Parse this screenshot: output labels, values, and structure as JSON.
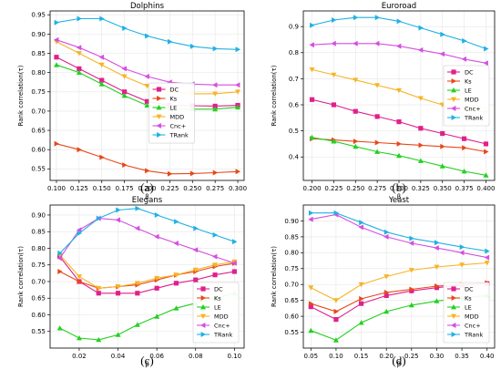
{
  "figure": {
    "panels": [
      {
        "id": "a",
        "caption": "(a)"
      },
      {
        "id": "b",
        "caption": "(b)"
      },
      {
        "id": "c",
        "caption": "(c)"
      },
      {
        "id": "d",
        "caption": "(d)"
      }
    ]
  },
  "chart_data": [
    {
      "type": "line",
      "title": "Dolphins",
      "caption": "(a)",
      "xlabel": "β",
      "ylabel": "Rank correlation(τ)",
      "x": [
        0.1,
        0.125,
        0.15,
        0.175,
        0.2,
        0.225,
        0.25,
        0.275,
        0.3
      ],
      "xticks": [
        0.1,
        0.125,
        0.15,
        0.175,
        0.2,
        0.225,
        0.25,
        0.275,
        0.3
      ],
      "xtick_labels": [
        "0.100",
        "0.125",
        "0.150",
        "0.175",
        "0.200",
        "0.225",
        "0.250",
        "0.275",
        "0.300"
      ],
      "xlim": [
        0.093,
        0.307
      ],
      "ylim": [
        0.52,
        0.96
      ],
      "yticks": [
        0.55,
        0.6,
        0.65,
        0.7,
        0.75,
        0.8,
        0.85,
        0.9,
        0.95
      ],
      "ytick_labels": [
        "0.55",
        "0.60",
        "0.65",
        "0.70",
        "0.75",
        "0.80",
        "0.85",
        "0.90",
        "0.95"
      ],
      "legend": "center",
      "series": [
        {
          "name": "DC",
          "color": "#e0208c",
          "marker": "square",
          "values": [
            0.84,
            0.81,
            0.78,
            0.75,
            0.725,
            0.715,
            0.714,
            0.713,
            0.715
          ]
        },
        {
          "name": "Ks",
          "color": "#e8471a",
          "marker": "tri_right",
          "values": [
            0.615,
            0.6,
            0.58,
            0.56,
            0.545,
            0.537,
            0.538,
            0.54,
            0.543
          ]
        },
        {
          "name": "LE",
          "color": "#22d11f",
          "marker": "tri_up",
          "values": [
            0.82,
            0.8,
            0.77,
            0.74,
            0.715,
            0.705,
            0.705,
            0.705,
            0.71
          ]
        },
        {
          "name": "MDD",
          "color": "#f7b425",
          "marker": "tri_down",
          "values": [
            0.88,
            0.85,
            0.82,
            0.79,
            0.765,
            0.75,
            0.745,
            0.745,
            0.75
          ]
        },
        {
          "name": "Cnc+",
          "color": "#d54fe0",
          "marker": "tri_left",
          "values": [
            0.885,
            0.865,
            0.84,
            0.81,
            0.79,
            0.775,
            0.77,
            0.768,
            0.768
          ]
        },
        {
          "name": "TRank",
          "color": "#20b1e3",
          "marker": "tri_right",
          "values": [
            0.93,
            0.94,
            0.94,
            0.915,
            0.895,
            0.88,
            0.868,
            0.862,
            0.86
          ]
        }
      ]
    },
    {
      "type": "line",
      "title": "Euroroad",
      "caption": "(b)",
      "xlabel": "β",
      "ylabel": "Rank correlation(τ)",
      "x": [
        0.2,
        0.225,
        0.25,
        0.275,
        0.3,
        0.325,
        0.35,
        0.375,
        0.4
      ],
      "xticks": [
        0.2,
        0.225,
        0.25,
        0.275,
        0.3,
        0.325,
        0.35,
        0.375,
        0.4
      ],
      "xtick_labels": [
        "0.200",
        "0.225",
        "0.250",
        "0.275",
        "0.300",
        "0.325",
        "0.350",
        "0.375",
        "0.400"
      ],
      "xlim": [
        0.19,
        0.41
      ],
      "ylim": [
        0.31,
        0.96
      ],
      "yticks": [
        0.4,
        0.5,
        0.6,
        0.7,
        0.8,
        0.9
      ],
      "ytick_labels": [
        "0.4",
        "0.5",
        "0.6",
        "0.7",
        "0.8",
        "0.9"
      ],
      "legend": "right",
      "series": [
        {
          "name": "DC",
          "color": "#e0208c",
          "marker": "square",
          "values": [
            0.62,
            0.6,
            0.575,
            0.555,
            0.535,
            0.51,
            0.49,
            0.47,
            0.45
          ]
        },
        {
          "name": "Ks",
          "color": "#e8471a",
          "marker": "tri_right",
          "values": [
            0.47,
            0.465,
            0.46,
            0.455,
            0.45,
            0.445,
            0.44,
            0.435,
            0.42
          ]
        },
        {
          "name": "LE",
          "color": "#22d11f",
          "marker": "tri_up",
          "values": [
            0.475,
            0.46,
            0.44,
            0.42,
            0.405,
            0.385,
            0.365,
            0.345,
            0.33
          ]
        },
        {
          "name": "MDD",
          "color": "#f7b425",
          "marker": "tri_down",
          "values": [
            0.735,
            0.715,
            0.695,
            0.675,
            0.655,
            0.625,
            0.6,
            0.585,
            0.57
          ]
        },
        {
          "name": "Cnc+",
          "color": "#d54fe0",
          "marker": "tri_left",
          "values": [
            0.83,
            0.835,
            0.835,
            0.835,
            0.825,
            0.81,
            0.795,
            0.775,
            0.76
          ]
        },
        {
          "name": "TRank",
          "color": "#20b1e3",
          "marker": "tri_right",
          "values": [
            0.905,
            0.925,
            0.935,
            0.935,
            0.92,
            0.895,
            0.87,
            0.845,
            0.815
          ]
        }
      ]
    },
    {
      "type": "line",
      "title": "Elegans",
      "caption": "(c)",
      "xlabel": "β",
      "ylabel": "Rank correlation(τ)",
      "x": [
        0.01,
        0.02,
        0.03,
        0.04,
        0.05,
        0.06,
        0.07,
        0.08,
        0.09,
        0.1
      ],
      "xticks": [
        0.02,
        0.04,
        0.06,
        0.08,
        0.1
      ],
      "xtick_labels": [
        "0.02",
        "0.04",
        "0.06",
        "0.08",
        "0.10"
      ],
      "xlim": [
        0.005,
        0.105
      ],
      "ylim": [
        0.5,
        0.93
      ],
      "yticks": [
        0.55,
        0.6,
        0.65,
        0.7,
        0.75,
        0.8,
        0.85,
        0.9
      ],
      "ytick_labels": [
        "0.55",
        "0.60",
        "0.65",
        "0.70",
        "0.75",
        "0.80",
        "0.85",
        "0.90"
      ],
      "legend": "lower-right",
      "series": [
        {
          "name": "DC",
          "color": "#e0208c",
          "marker": "square",
          "values": [
            0.775,
            0.7,
            0.665,
            0.665,
            0.665,
            0.68,
            0.695,
            0.705,
            0.72,
            0.73
          ]
        },
        {
          "name": "Ks",
          "color": "#e8471a",
          "marker": "tri_right",
          "values": [
            0.73,
            0.7,
            0.68,
            0.685,
            0.69,
            0.705,
            0.72,
            0.73,
            0.745,
            0.755
          ]
        },
        {
          "name": "LE",
          "color": "#22d11f",
          "marker": "tri_up",
          "values": [
            0.56,
            0.53,
            0.525,
            0.54,
            0.57,
            0.595,
            0.62,
            0.635,
            0.65,
            0.665
          ]
        },
        {
          "name": "MDD",
          "color": "#f7b425",
          "marker": "tri_down",
          "values": [
            0.78,
            0.715,
            0.68,
            0.685,
            0.695,
            0.71,
            0.72,
            0.735,
            0.75,
            0.76
          ]
        },
        {
          "name": "Cnc+",
          "color": "#d54fe0",
          "marker": "tri_left",
          "values": [
            0.77,
            0.855,
            0.89,
            0.885,
            0.86,
            0.835,
            0.815,
            0.795,
            0.775,
            0.755
          ]
        },
        {
          "name": "TRank",
          "color": "#20b1e3",
          "marker": "tri_right",
          "values": [
            0.785,
            0.845,
            0.89,
            0.915,
            0.92,
            0.9,
            0.88,
            0.86,
            0.84,
            0.82
          ]
        }
      ]
    },
    {
      "type": "line",
      "title": "Yeast",
      "caption": "(d)",
      "xlabel": "β",
      "ylabel": "Rank correlation(τ)",
      "x": [
        0.05,
        0.1,
        0.15,
        0.2,
        0.25,
        0.3,
        0.35,
        0.4
      ],
      "xticks": [
        0.05,
        0.1,
        0.15,
        0.2,
        0.25,
        0.3,
        0.35,
        0.4
      ],
      "xtick_labels": [
        "0.05",
        "0.10",
        "0.15",
        "0.20",
        "0.25",
        "0.30",
        "0.35",
        "0.40"
      ],
      "xlim": [
        0.035,
        0.415
      ],
      "ylim": [
        0.5,
        0.95
      ],
      "yticks": [
        0.55,
        0.6,
        0.65,
        0.7,
        0.75,
        0.8,
        0.85,
        0.9
      ],
      "ytick_labels": [
        "0.55",
        "0.60",
        "0.65",
        "0.70",
        "0.75",
        "0.80",
        "0.85",
        "0.90"
      ],
      "legend": "lower-right",
      "series": [
        {
          "name": "DC",
          "color": "#e0208c",
          "marker": "square",
          "values": [
            0.63,
            0.59,
            0.64,
            0.665,
            0.68,
            0.69,
            0.698,
            0.703
          ]
        },
        {
          "name": "Ks",
          "color": "#e8471a",
          "marker": "tri_right",
          "values": [
            0.64,
            0.615,
            0.655,
            0.675,
            0.685,
            0.695,
            0.7,
            0.705
          ]
        },
        {
          "name": "LE",
          "color": "#22d11f",
          "marker": "tri_up",
          "values": [
            0.555,
            0.525,
            0.58,
            0.615,
            0.635,
            0.648,
            0.658,
            0.665
          ]
        },
        {
          "name": "MDD",
          "color": "#f7b425",
          "marker": "tri_down",
          "values": [
            0.69,
            0.65,
            0.7,
            0.725,
            0.745,
            0.755,
            0.762,
            0.768
          ]
        },
        {
          "name": "Cnc+",
          "color": "#d54fe0",
          "marker": "tri_left",
          "values": [
            0.905,
            0.92,
            0.88,
            0.85,
            0.83,
            0.815,
            0.8,
            0.785
          ]
        },
        {
          "name": "TRank",
          "color": "#20b1e3",
          "marker": "tri_right",
          "values": [
            0.925,
            0.925,
            0.895,
            0.865,
            0.845,
            0.832,
            0.818,
            0.805
          ]
        }
      ]
    }
  ]
}
